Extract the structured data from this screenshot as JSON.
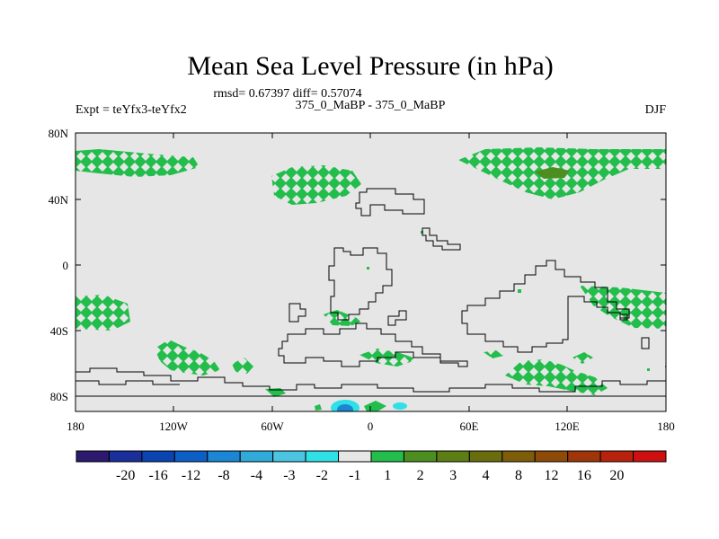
{
  "title": "Mean Sea Level Pressure (in hPa)",
  "stats": "rmsd= 0.67397 diff= 0.57074",
  "left_label": "Expt = teYfx3-teYfx2",
  "center_label": "375_0_MaBP - 375_0_MaBP",
  "right_label": "DJF",
  "lat_ticks": [
    "80N",
    "40N",
    "0",
    "40S",
    "80S"
  ],
  "lon_ticks": [
    "180",
    "120W",
    "60W",
    "0",
    "60E",
    "120E",
    "180"
  ],
  "colorbar": {
    "colors": [
      "#2b1a6e",
      "#1a2f9c",
      "#0a44b0",
      "#0d5fc8",
      "#1a86d4",
      "#30abd9",
      "#4cc5e3",
      "#2fe0e6",
      "#e6e6e6",
      "#22bd4b",
      "#4d8e21",
      "#5d7d15",
      "#6a6d0e",
      "#7d5d0a",
      "#8e4a07",
      "#9f3508",
      "#b8220c",
      "#cf1010"
    ],
    "labels": [
      "-20",
      "-16",
      "-12",
      "-8",
      "-4",
      "-3",
      "-2",
      "-1",
      "1",
      "2",
      "3",
      "4",
      "8",
      "12",
      "16",
      "20"
    ]
  },
  "colors": {
    "background": "#e6e6e6",
    "positive": "#22bd4b",
    "positive_strong": "#4d8e21",
    "negative_light": "#2fe0e6",
    "negative": "#1a86d4"
  }
}
